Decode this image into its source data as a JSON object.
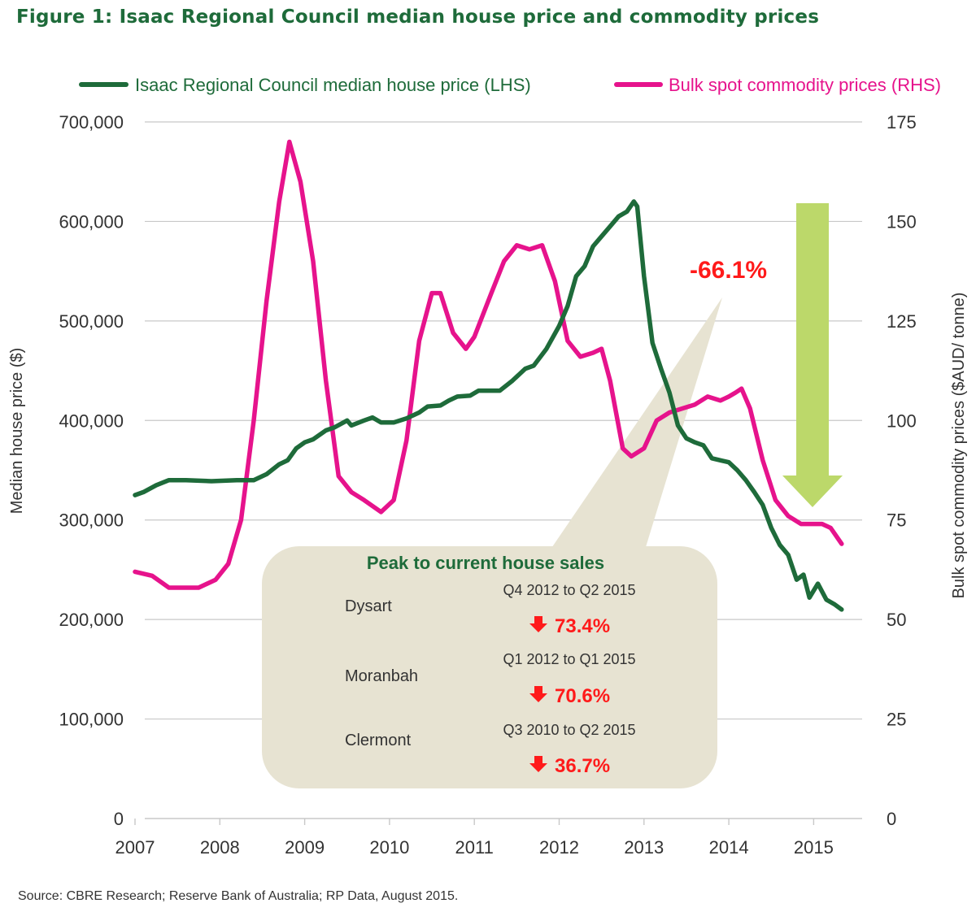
{
  "chart_data": {
    "type": "line",
    "title": "Figure 1: Isaac Regional Council median house price and commodity prices",
    "x_ticks": [
      "2007",
      "2008",
      "2009",
      "2010",
      "2011",
      "2012",
      "2013",
      "2014",
      "2015"
    ],
    "xlim": [
      2007,
      2016
    ],
    "y_left": {
      "label": "Median house price ($)",
      "lim": [
        0,
        700000
      ],
      "ticks": [
        "0",
        "100,000",
        "200,000",
        "300,000",
        "400,000",
        "500,000",
        "600,000",
        "700,000"
      ]
    },
    "y_right": {
      "label": "Bulk spot commodity prices ($AUD/ tonne)",
      "lim": [
        0,
        175
      ],
      "ticks": [
        "0",
        "25",
        "50",
        "75",
        "100",
        "125",
        "150",
        "175"
      ]
    },
    "legend_position": "top",
    "series": [
      {
        "name": "Isaac Regional Council median house price (LHS)",
        "axis": "left",
        "color": "#1e6b3a",
        "points": [
          [
            2007.0,
            325000
          ],
          [
            2007.1,
            328000
          ],
          [
            2007.25,
            335000
          ],
          [
            2007.4,
            340000
          ],
          [
            2007.6,
            340000
          ],
          [
            2007.9,
            339000
          ],
          [
            2008.2,
            340000
          ],
          [
            2008.4,
            340000
          ],
          [
            2008.55,
            346000
          ],
          [
            2008.7,
            356000
          ],
          [
            2008.8,
            360000
          ],
          [
            2008.9,
            372000
          ],
          [
            2009.0,
            378000
          ],
          [
            2009.1,
            381000
          ],
          [
            2009.25,
            390000
          ],
          [
            2009.35,
            393000
          ],
          [
            2009.5,
            400000
          ],
          [
            2009.55,
            395000
          ],
          [
            2009.7,
            400000
          ],
          [
            2009.8,
            403000
          ],
          [
            2009.9,
            398000
          ],
          [
            2010.05,
            398000
          ],
          [
            2010.2,
            402000
          ],
          [
            2010.35,
            408000
          ],
          [
            2010.45,
            414000
          ],
          [
            2010.6,
            415000
          ],
          [
            2010.7,
            420000
          ],
          [
            2010.8,
            424000
          ],
          [
            2010.95,
            425000
          ],
          [
            2011.05,
            430000
          ],
          [
            2011.3,
            430000
          ],
          [
            2011.45,
            440000
          ],
          [
            2011.6,
            452000
          ],
          [
            2011.7,
            455000
          ],
          [
            2011.85,
            472000
          ],
          [
            2012.0,
            495000
          ],
          [
            2012.1,
            515000
          ],
          [
            2012.2,
            545000
          ],
          [
            2012.3,
            555000
          ],
          [
            2012.4,
            575000
          ],
          [
            2012.5,
            585000
          ],
          [
            2012.6,
            595000
          ],
          [
            2012.7,
            605000
          ],
          [
            2012.8,
            610000
          ],
          [
            2012.88,
            620000
          ],
          [
            2012.92,
            615000
          ],
          [
            2013.0,
            545000
          ],
          [
            2013.1,
            478000
          ],
          [
            2013.2,
            452000
          ],
          [
            2013.3,
            428000
          ],
          [
            2013.4,
            395000
          ],
          [
            2013.5,
            382000
          ],
          [
            2013.6,
            378000
          ],
          [
            2013.7,
            375000
          ],
          [
            2013.8,
            362000
          ],
          [
            2013.9,
            360000
          ],
          [
            2014.0,
            358000
          ],
          [
            2014.1,
            350000
          ],
          [
            2014.2,
            340000
          ],
          [
            2014.3,
            328000
          ],
          [
            2014.4,
            315000
          ],
          [
            2014.5,
            292000
          ],
          [
            2014.6,
            275000
          ],
          [
            2014.7,
            265000
          ],
          [
            2014.8,
            240000
          ],
          [
            2014.88,
            245000
          ],
          [
            2014.95,
            222000
          ],
          [
            2015.05,
            236000
          ],
          [
            2015.15,
            220000
          ],
          [
            2015.25,
            215000
          ],
          [
            2015.33,
            210000
          ]
        ]
      },
      {
        "name": "Bulk spot commodity prices (RHS)",
        "axis": "right",
        "color": "#e6138c",
        "points": [
          [
            2007.0,
            62
          ],
          [
            2007.2,
            61
          ],
          [
            2007.4,
            58
          ],
          [
            2007.6,
            58
          ],
          [
            2007.75,
            58
          ],
          [
            2007.95,
            60
          ],
          [
            2008.1,
            64
          ],
          [
            2008.25,
            75
          ],
          [
            2008.4,
            100
          ],
          [
            2008.55,
            130
          ],
          [
            2008.7,
            155
          ],
          [
            2008.82,
            170
          ],
          [
            2008.95,
            160
          ],
          [
            2009.1,
            140
          ],
          [
            2009.25,
            110
          ],
          [
            2009.4,
            86
          ],
          [
            2009.55,
            82
          ],
          [
            2009.7,
            80
          ],
          [
            2009.9,
            77
          ],
          [
            2010.05,
            80
          ],
          [
            2010.2,
            95
          ],
          [
            2010.35,
            120
          ],
          [
            2010.5,
            132
          ],
          [
            2010.6,
            132
          ],
          [
            2010.75,
            122
          ],
          [
            2010.9,
            118
          ],
          [
            2011.0,
            121
          ],
          [
            2011.2,
            132
          ],
          [
            2011.35,
            140
          ],
          [
            2011.5,
            144
          ],
          [
            2011.65,
            143
          ],
          [
            2011.8,
            144
          ],
          [
            2011.95,
            135
          ],
          [
            2012.1,
            120
          ],
          [
            2012.25,
            116
          ],
          [
            2012.4,
            117
          ],
          [
            2012.5,
            118
          ],
          [
            2012.6,
            110
          ],
          [
            2012.75,
            93
          ],
          [
            2012.85,
            91
          ],
          [
            2013.0,
            93
          ],
          [
            2013.15,
            100
          ],
          [
            2013.3,
            102
          ],
          [
            2013.45,
            103
          ],
          [
            2013.6,
            104
          ],
          [
            2013.75,
            106
          ],
          [
            2013.9,
            105
          ],
          [
            2014.0,
            106
          ],
          [
            2014.08,
            107
          ],
          [
            2014.15,
            108
          ],
          [
            2014.25,
            103
          ],
          [
            2014.4,
            90
          ],
          [
            2014.55,
            80
          ],
          [
            2014.7,
            76
          ],
          [
            2014.85,
            74
          ],
          [
            2015.0,
            74
          ],
          [
            2015.1,
            74
          ],
          [
            2015.2,
            73
          ],
          [
            2015.33,
            69
          ]
        ]
      }
    ],
    "annotations": {
      "peak_change": "-66.1%",
      "callout_title": "Peak to current house sales",
      "rows": [
        {
          "place": "Dysart",
          "period": "Q4 2012 to Q2 2015",
          "change": "73.4%"
        },
        {
          "place": "Moranbah",
          "period": "Q1 2012 to Q1 2015",
          "change": "70.6%"
        },
        {
          "place": "Clermont",
          "period": "Q3 2010 to Q2 2015",
          "change": "36.7%"
        }
      ]
    }
  },
  "source": "Source: CBRE Research; Reserve Bank of Australia; RP Data, August 2015.",
  "colors": {
    "house": "#1e6b3a",
    "commodity": "#e6138c",
    "callout_bg": "#e7e3d2",
    "arrow": "#bcd86a",
    "negative": "#ff1a1a",
    "grid": "#c8c8c8"
  }
}
